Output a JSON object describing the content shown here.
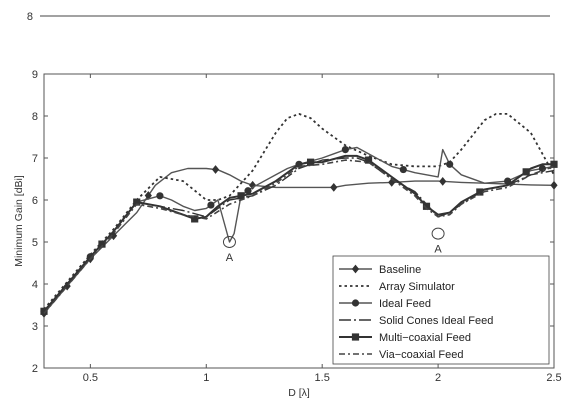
{
  "chart_data": {
    "type": "line",
    "xlabel": "D [λ]",
    "ylabel": "Minimum Gain [dBi]",
    "xlim": [
      0.3,
      2.5
    ],
    "ylim": [
      2,
      9
    ],
    "xticks": [
      0.5,
      1,
      1.5,
      2,
      2.5
    ],
    "xtick_labels": [
      "0.5",
      "1",
      "1.5",
      "2",
      "2.5"
    ],
    "yticks": [
      2,
      3,
      4,
      5,
      6,
      7,
      8,
      9
    ],
    "ytick_labels": [
      "2",
      "3",
      "4",
      "5",
      "6",
      "7",
      "8",
      "9"
    ],
    "legend_position": "bottom-right",
    "grid": false,
    "upper_panel_tick_label": "8",
    "annotations": [
      {
        "text": "A",
        "x": 1.1,
        "y": 5.0
      },
      {
        "text": "A",
        "x": 2.0,
        "y": 5.2
      }
    ],
    "series": [
      {
        "name": "Baseline",
        "style": "solid",
        "marker": "diamond",
        "x": [
          0.3,
          0.4,
          0.5,
          0.6,
          0.7,
          0.78,
          0.85,
          0.92,
          1.0,
          1.05,
          1.1,
          1.15,
          1.2,
          1.3,
          1.4,
          1.5,
          1.55,
          1.6,
          1.7,
          1.8,
          1.9,
          2.0,
          2.1,
          2.2,
          2.3,
          2.4,
          2.5
        ],
        "y": [
          3.3,
          3.95,
          4.6,
          5.15,
          5.7,
          6.35,
          6.65,
          6.75,
          6.75,
          6.72,
          6.6,
          6.45,
          6.35,
          6.3,
          6.3,
          6.3,
          6.3,
          6.35,
          6.4,
          6.42,
          6.45,
          6.45,
          6.42,
          6.4,
          6.38,
          6.36,
          6.35
        ],
        "marker_x": [
          0.3,
          0.4,
          0.5,
          0.6,
          0.75,
          1.04,
          1.2,
          1.55,
          1.8,
          2.02,
          2.5
        ]
      },
      {
        "name": "Array Simulator",
        "style": "dotted",
        "marker": "none",
        "x": [
          0.3,
          0.4,
          0.5,
          0.6,
          0.7,
          0.8,
          0.9,
          1.0,
          1.05,
          1.1,
          1.2,
          1.3,
          1.35,
          1.4,
          1.45,
          1.5,
          1.6,
          1.7,
          1.8,
          1.9,
          2.0,
          2.05,
          2.1,
          2.2,
          2.25,
          2.3,
          2.4,
          2.5
        ],
        "y": [
          3.4,
          4.05,
          4.7,
          5.3,
          6.0,
          6.55,
          6.45,
          6.0,
          6.0,
          6.1,
          6.7,
          7.6,
          7.95,
          8.05,
          7.95,
          7.7,
          7.3,
          7.05,
          6.85,
          6.8,
          6.8,
          6.9,
          7.2,
          7.9,
          8.05,
          8.05,
          7.6,
          6.6
        ]
      },
      {
        "name": "Ideal Feed",
        "style": "solid",
        "marker": "circle",
        "x": [
          0.3,
          0.4,
          0.5,
          0.6,
          0.7,
          0.8,
          0.85,
          0.9,
          0.95,
          1.0,
          1.05,
          1.1,
          1.12,
          1.15,
          1.2,
          1.3,
          1.35,
          1.4,
          1.5,
          1.55,
          1.6,
          1.65,
          1.7,
          1.8,
          1.9,
          2.0,
          2.02,
          2.05,
          2.1,
          2.2,
          2.3,
          2.4,
          2.5
        ],
        "y": [
          3.35,
          4.0,
          4.65,
          5.25,
          5.95,
          6.1,
          6.0,
          5.85,
          5.75,
          5.8,
          6.0,
          5.0,
          5.2,
          6.1,
          6.3,
          6.6,
          6.75,
          6.85,
          7.0,
          7.1,
          7.2,
          7.25,
          7.1,
          6.8,
          6.65,
          6.55,
          7.2,
          6.85,
          6.6,
          6.4,
          6.45,
          6.7,
          6.8
        ],
        "marker_x": [
          0.3,
          0.5,
          0.8,
          1.02,
          1.18,
          1.4,
          1.6,
          1.85,
          2.05,
          2.3,
          2.45
        ]
      },
      {
        "name": "Solid Cones Ideal Feed",
        "style": "dashdot-long",
        "marker": "none",
        "x": [
          0.3,
          0.4,
          0.5,
          0.6,
          0.7,
          0.8,
          0.9,
          1.0,
          1.05,
          1.1,
          1.15,
          1.2,
          1.3,
          1.4,
          1.5,
          1.6,
          1.65,
          1.7,
          1.8,
          1.9,
          1.95,
          2.0,
          2.05,
          2.1,
          2.2,
          2.3,
          2.4,
          2.5
        ],
        "y": [
          3.35,
          4.0,
          4.65,
          5.25,
          5.95,
          5.85,
          5.75,
          5.6,
          5.8,
          6.0,
          6.05,
          6.1,
          6.35,
          6.75,
          6.95,
          7.0,
          7.0,
          6.9,
          6.5,
          6.2,
          5.9,
          5.6,
          5.7,
          5.9,
          6.25,
          6.35,
          6.6,
          6.7
        ]
      },
      {
        "name": "Multi−coaxial Feed",
        "style": "solid-thick",
        "marker": "square",
        "x": [
          0.3,
          0.4,
          0.5,
          0.6,
          0.7,
          0.8,
          0.9,
          0.95,
          1.0,
          1.05,
          1.1,
          1.15,
          1.2,
          1.3,
          1.4,
          1.45,
          1.5,
          1.6,
          1.65,
          1.7,
          1.8,
          1.9,
          1.95,
          2.0,
          2.05,
          2.1,
          2.2,
          2.3,
          2.4,
          2.45,
          2.5
        ],
        "y": [
          3.35,
          4.0,
          4.65,
          5.25,
          5.95,
          5.85,
          5.65,
          5.55,
          5.6,
          5.85,
          6.05,
          6.1,
          6.15,
          6.45,
          6.85,
          6.9,
          6.9,
          7.05,
          7.05,
          6.95,
          6.55,
          6.15,
          5.85,
          5.65,
          5.7,
          5.95,
          6.25,
          6.35,
          6.75,
          6.85,
          6.85
        ],
        "marker_x": [
          0.3,
          0.55,
          0.7,
          0.95,
          1.15,
          1.45,
          1.7,
          1.95,
          2.18,
          2.38,
          2.5
        ]
      },
      {
        "name": "Via−coaxial Feed",
        "style": "dashdot",
        "marker": "none",
        "x": [
          0.3,
          0.4,
          0.5,
          0.6,
          0.7,
          0.8,
          0.9,
          1.0,
          1.1,
          1.2,
          1.3,
          1.4,
          1.5,
          1.6,
          1.7,
          1.8,
          1.9,
          1.95,
          2.0,
          2.05,
          2.1,
          2.2,
          2.3,
          2.4,
          2.5
        ],
        "y": [
          3.3,
          3.95,
          4.6,
          5.2,
          5.9,
          5.8,
          5.65,
          5.55,
          5.9,
          6.1,
          6.4,
          6.8,
          6.85,
          6.95,
          6.9,
          6.5,
          6.1,
          5.8,
          5.6,
          5.65,
          5.9,
          6.2,
          6.3,
          6.6,
          6.8
        ]
      }
    ]
  }
}
